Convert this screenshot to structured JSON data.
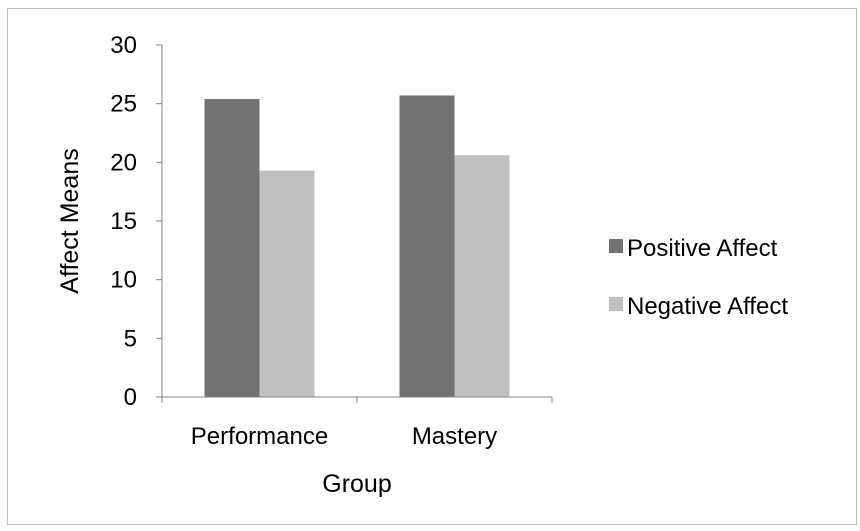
{
  "chart_data": {
    "type": "bar",
    "categories": [
      "Performance",
      "Mastery"
    ],
    "series": [
      {
        "name": "Positive Affect",
        "values": [
          25.4,
          25.7
        ],
        "color": "#727272"
      },
      {
        "name": "Negative Affect",
        "values": [
          19.3,
          20.6
        ],
        "color": "#c0c0c0"
      }
    ],
    "xlabel": "Group",
    "ylabel": "Affect Means",
    "ylim": [
      0,
      30
    ],
    "yticks": [
      "0",
      "5",
      "10",
      "15",
      "20",
      "25",
      "30"
    ],
    "grid": false,
    "legend_position": "right"
  }
}
